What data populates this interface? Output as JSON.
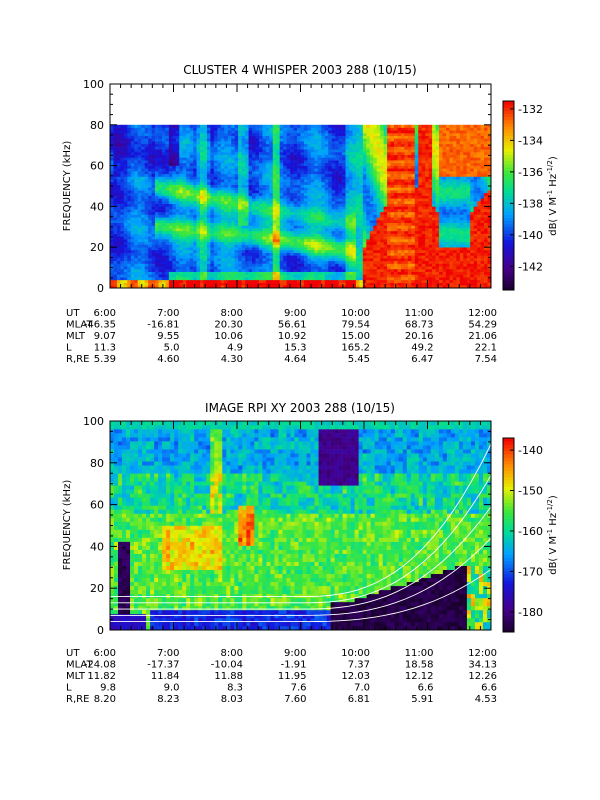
{
  "chart_data": [
    {
      "type": "heatmap",
      "title": "CLUSTER 4 WHISPER 2003 288 (10/15)",
      "ylabel": "FREQUENCY (kHz)",
      "ylim": [
        0,
        100
      ],
      "data_ylim": [
        0,
        80
      ],
      "yticks": [
        "0",
        "20",
        "40",
        "60",
        "80",
        "100"
      ],
      "xlim": [
        6,
        12
      ],
      "xticks": [
        "6:00",
        "7:00",
        "8:00",
        "9:00",
        "10:00",
        "11:00",
        "12:00"
      ],
      "colorbar": {
        "label": "dB( V M^-1 Hz^-1/2 )",
        "label_main": "dB( V M",
        "label_sup1": "-1",
        "label_mid": " Hz",
        "label_sup2": "-1/2",
        "label_end": ")",
        "range": [
          -143.5,
          -131.5
        ],
        "ticks": [
          "-132",
          "-134",
          "-136",
          "-138",
          "-140",
          "-142"
        ]
      },
      "ephemeris": {
        "labels": [
          "UT",
          "MLAT",
          "MLT",
          "L",
          "R,RE"
        ],
        "rows": [
          [
            "6:00",
            "7:00",
            "8:00",
            "9:00",
            "10:00",
            "11:00",
            "12:00"
          ],
          [
            "-46.35",
            "-16.81",
            "20.30",
            "56.61",
            "79.54",
            "68.73",
            "54.29"
          ],
          [
            "9.07",
            "9.55",
            "10.06",
            "10.92",
            "15.00",
            "20.16",
            "21.06"
          ],
          [
            "11.3",
            "5.0",
            "4.9",
            "15.3",
            "165.2",
            "49.2",
            "22.1"
          ],
          [
            "5.39",
            "4.60",
            "4.30",
            "4.64",
            "5.45",
            "6.47",
            "7.54"
          ]
        ]
      }
    },
    {
      "type": "heatmap",
      "title": "IMAGE RPI XY 2003 288 (10/15)",
      "ylabel": "FREQUENCY (kHz)",
      "ylim": [
        0,
        100
      ],
      "yticks": [
        "0",
        "20",
        "40",
        "60",
        "80",
        "100"
      ],
      "xlim": [
        6,
        12
      ],
      "xticks": [
        "6:00",
        "7:00",
        "8:00",
        "9:00",
        "10:00",
        "11:00",
        "12:00"
      ],
      "colorbar": {
        "label": "dB( V M^-1 Hz^-1/2 )",
        "label_main": "dB( V M",
        "label_sup1": "-1",
        "label_mid": " Hz",
        "label_sup2": "-1/2",
        "label_end": ")",
        "range": [
          -185,
          -137
        ],
        "ticks": [
          "-140",
          "-150",
          "-160",
          "-170",
          "-180"
        ]
      },
      "ephemeris": {
        "labels": [
          "UT",
          "MLAT",
          "MLT",
          "L",
          "R,RE"
        ],
        "rows": [
          [
            "6:00",
            "7:00",
            "8:00",
            "9:00",
            "10:00",
            "11:00",
            "12:00"
          ],
          [
            "-24.08",
            "-17.37",
            "-10.04",
            "-1.91",
            "7.37",
            "18.58",
            "34.13"
          ],
          [
            "11.82",
            "11.84",
            "11.88",
            "11.95",
            "12.03",
            "12.12",
            "12.26"
          ],
          [
            "9.8",
            "9.0",
            "8.3",
            "7.6",
            "7.0",
            "6.6",
            "6.6"
          ],
          [
            "8.20",
            "8.23",
            "8.03",
            "7.60",
            "6.81",
            "5.91",
            "4.53"
          ]
        ]
      }
    }
  ]
}
